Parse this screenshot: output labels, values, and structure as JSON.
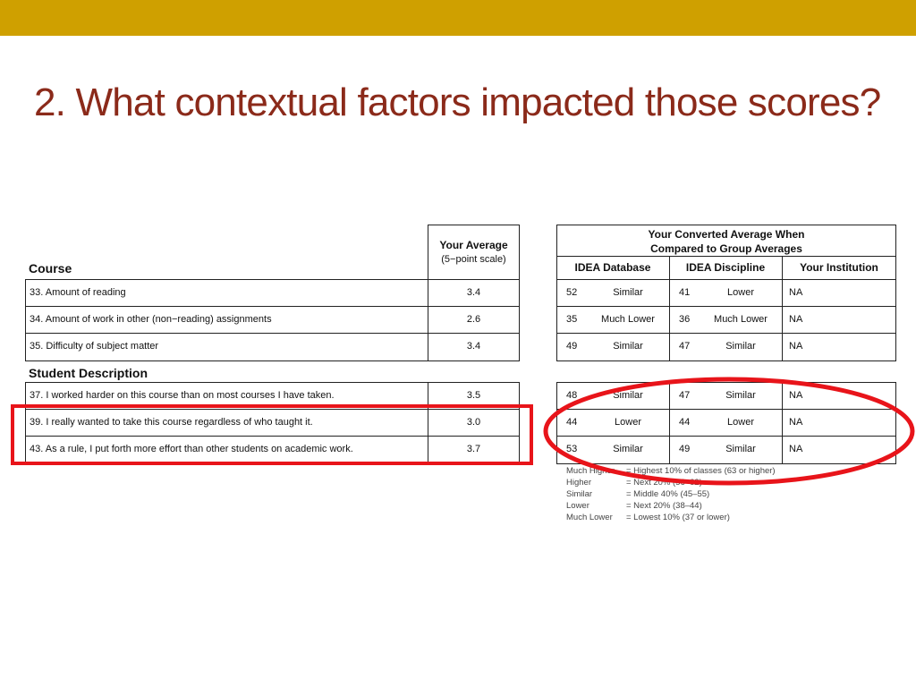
{
  "slide": {
    "title": "2. What contextual factors impacted those scores?"
  },
  "left_table": {
    "header_avg": "Your Average",
    "header_scale": "(5−point scale)",
    "section_course": "Course",
    "section_student": "Student Description",
    "rows": [
      {
        "item": "33. Amount of reading",
        "avg": "3.4"
      },
      {
        "item": "34. Amount of work in other (non−reading) assignments",
        "avg": "2.6"
      },
      {
        "item": "35. Difficulty of subject matter",
        "avg": "3.4"
      },
      {
        "item": "37. I worked harder on this course than on most courses I have taken.",
        "avg": "3.5"
      },
      {
        "item": "39. I really wanted to take this course regardless of who taught it.",
        "avg": "3.0"
      },
      {
        "item": "43. As a rule, I put forth more effort than other students on academic work.",
        "avg": "3.7"
      }
    ]
  },
  "right_table": {
    "header_line1": "Your Converted Average When",
    "header_line2": "Compared to Group Averages",
    "col_db": "IDEA Database",
    "col_disc": "IDEA Discipline",
    "col_inst": "Your Institution",
    "rows": [
      {
        "db_score": "52",
        "db_rating": "Similar",
        "disc_score": "41",
        "disc_rating": "Lower",
        "inst": "NA"
      },
      {
        "db_score": "35",
        "db_rating": "Much Lower",
        "disc_score": "36",
        "disc_rating": "Much Lower",
        "inst": "NA"
      },
      {
        "db_score": "49",
        "db_rating": "Similar",
        "disc_score": "47",
        "disc_rating": "Similar",
        "inst": "NA"
      },
      {
        "db_score": "48",
        "db_rating": "Similar",
        "disc_score": "47",
        "disc_rating": "Similar",
        "inst": "NA"
      },
      {
        "db_score": "44",
        "db_rating": "Lower",
        "disc_score": "44",
        "disc_rating": "Lower",
        "inst": "NA"
      },
      {
        "db_score": "53",
        "db_rating": "Similar",
        "disc_score": "49",
        "disc_rating": "Similar",
        "inst": "NA"
      }
    ]
  },
  "legend": [
    {
      "term": "Much Higher",
      "def": "= Highest 10% of classes (63 or higher)"
    },
    {
      "term": "Higher",
      "def": "= Next 20% (56–62)"
    },
    {
      "term": "Similar",
      "def": "= Middle 40% (45–55)"
    },
    {
      "term": "Lower",
      "def": "= Next 20% (38–44)"
    },
    {
      "term": "Much Lower",
      "def": "= Lowest 10% (37 or lower)"
    }
  ],
  "annotation_colors": {
    "highlight": "#e8141a",
    "accent_bar": "#cfa000",
    "title": "#8b2a1a"
  }
}
